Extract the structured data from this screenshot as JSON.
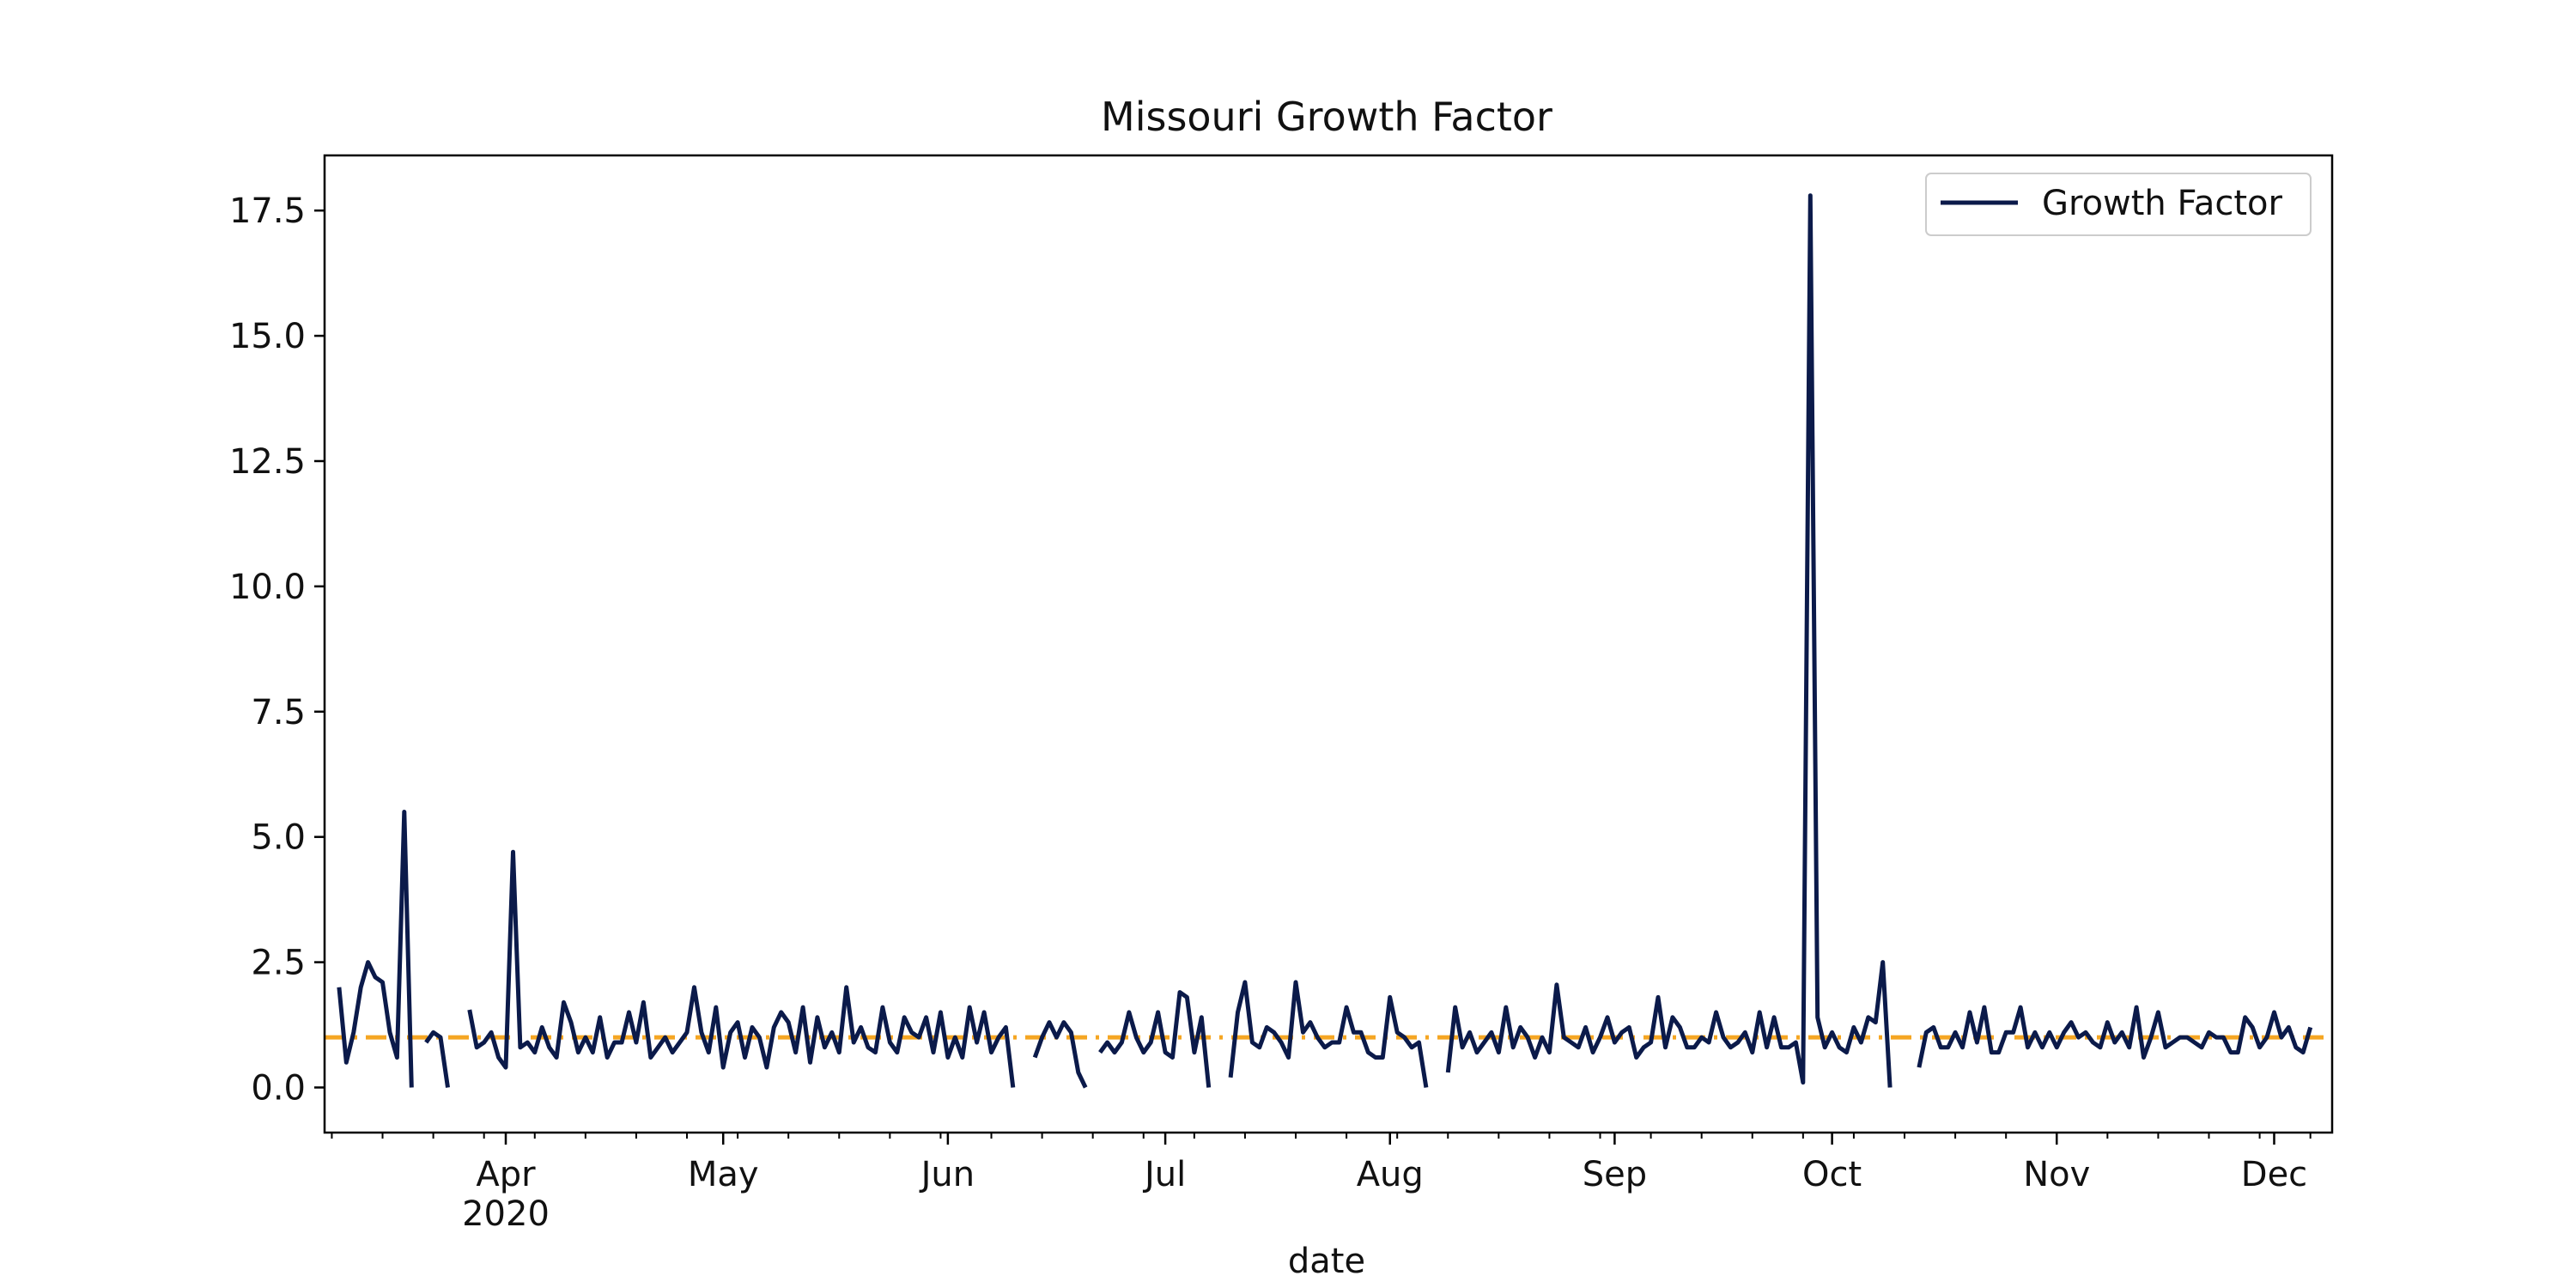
{
  "chart_data": {
    "type": "line",
    "title": "Missouri Growth Factor",
    "xlabel": "date",
    "ylabel": "",
    "x_start": "2020-03-09",
    "x_range": [
      "2020-03-07",
      "2020-12-09"
    ],
    "ylim": [
      -0.9,
      18.6
    ],
    "y_ticks": [
      0.0,
      2.5,
      5.0,
      7.5,
      10.0,
      12.5,
      15.0,
      17.5
    ],
    "y_tick_labels": [
      "0.0",
      "2.5",
      "5.0",
      "7.5",
      "10.0",
      "12.5",
      "15.0",
      "17.5"
    ],
    "x_ticks": [
      {
        "date": "2020-04-01",
        "label": "Apr",
        "sublabel": "2020"
      },
      {
        "date": "2020-05-01",
        "label": "May"
      },
      {
        "date": "2020-06-01",
        "label": "Jun"
      },
      {
        "date": "2020-07-01",
        "label": "Jul"
      },
      {
        "date": "2020-08-01",
        "label": "Aug"
      },
      {
        "date": "2020-09-01",
        "label": "Sep"
      },
      {
        "date": "2020-10-01",
        "label": "Oct"
      },
      {
        "date": "2020-11-01",
        "label": "Nov"
      },
      {
        "date": "2020-12-01",
        "label": "Dec"
      }
    ],
    "grid": false,
    "legend_position": "top-right",
    "series": [
      {
        "name": "Growth Factor",
        "color": "#0b1a4a",
        "values": [
          2.0,
          0.5,
          1.1,
          2.0,
          2.5,
          2.2,
          2.1,
          1.1,
          0.6,
          5.5,
          0.0,
          null,
          0.9,
          1.1,
          1.0,
          0.0,
          null,
          null,
          1.55,
          0.8,
          0.9,
          1.1,
          0.6,
          0.4,
          4.7,
          0.8,
          0.9,
          0.7,
          1.2,
          0.8,
          0.6,
          1.7,
          1.3,
          0.7,
          1.0,
          0.7,
          1.4,
          0.6,
          0.9,
          0.9,
          1.5,
          0.9,
          1.7,
          0.6,
          0.8,
          1.0,
          0.7,
          0.9,
          1.1,
          2.0,
          1.1,
          0.7,
          1.6,
          0.4,
          1.1,
          1.3,
          0.6,
          1.2,
          1.0,
          0.4,
          1.2,
          1.5,
          1.3,
          0.7,
          1.6,
          0.5,
          1.4,
          0.8,
          1.1,
          0.7,
          2.0,
          0.9,
          1.2,
          0.8,
          0.7,
          1.6,
          0.9,
          0.7,
          1.4,
          1.1,
          1.0,
          1.4,
          0.7,
          1.5,
          0.6,
          1.0,
          0.6,
          1.6,
          0.9,
          1.5,
          0.7,
          1.0,
          1.2,
          0.0,
          null,
          null,
          0.6,
          1.0,
          1.3,
          1.0,
          1.3,
          1.1,
          0.3,
          0.0,
          null,
          0.7,
          0.9,
          0.7,
          0.9,
          1.5,
          1.0,
          0.7,
          0.9,
          1.5,
          0.7,
          0.6,
          1.9,
          1.8,
          0.7,
          1.4,
          0.0,
          null,
          null,
          0.2,
          1.5,
          2.1,
          0.9,
          0.8,
          1.2,
          1.1,
          0.9,
          0.6,
          2.1,
          1.1,
          1.3,
          1.0,
          0.8,
          0.9,
          0.9,
          1.6,
          1.1,
          1.1,
          0.7,
          0.6,
          0.6,
          1.8,
          1.1,
          1.0,
          0.8,
          0.9,
          0.0,
          null,
          null,
          0.3,
          1.6,
          0.8,
          1.1,
          0.7,
          0.9,
          1.1,
          0.7,
          1.6,
          0.8,
          1.2,
          1.0,
          0.6,
          1.0,
          0.7,
          2.05,
          1.0,
          0.9,
          0.8,
          1.2,
          0.7,
          1.0,
          1.4,
          0.9,
          1.1,
          1.2,
          0.6,
          0.8,
          0.9,
          1.8,
          0.8,
          1.4,
          1.2,
          0.8,
          0.8,
          1.0,
          0.9,
          1.5,
          1.0,
          0.8,
          0.9,
          1.1,
          0.7,
          1.5,
          0.8,
          1.4,
          0.8,
          0.8,
          0.9,
          0.1,
          17.8,
          1.4,
          0.8,
          1.1,
          0.8,
          0.7,
          1.2,
          0.9,
          1.4,
          1.3,
          2.5,
          0.0,
          null,
          null,
          null,
          0.4,
          1.1,
          1.2,
          0.8,
          0.8,
          1.1,
          0.8,
          1.5,
          0.9,
          1.6,
          0.7,
          0.7,
          1.1,
          1.1,
          1.6,
          0.8,
          1.1,
          0.8,
          1.1,
          0.8,
          1.1,
          1.3,
          1.0,
          1.1,
          0.9,
          0.8,
          1.3,
          0.9,
          1.1,
          0.8,
          1.6,
          0.6,
          1.0,
          1.5,
          0.8,
          0.9,
          1.0,
          1.0,
          0.9,
          0.8,
          1.1,
          1.0,
          1.0,
          0.7,
          0.7,
          1.4,
          1.2,
          0.8,
          1.0,
          1.5,
          1.0,
          1.2,
          0.8,
          0.7,
          1.2
        ]
      }
    ],
    "reference_line": {
      "y": 1.0,
      "color": "#f5a623",
      "style": "dash-dot"
    }
  }
}
